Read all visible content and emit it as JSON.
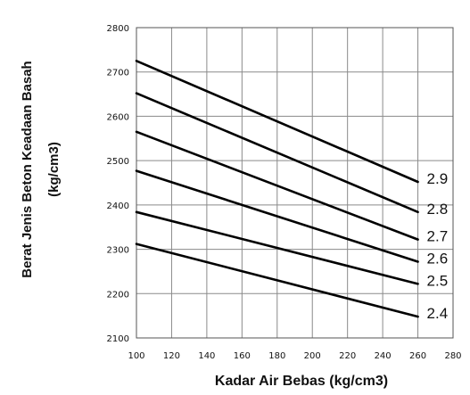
{
  "chart_data": {
    "type": "line",
    "xlabel": "Kadar Air Bebas (kg/cm3)",
    "ylabel_line1": "Berat Jenis Beton Keadaan Basah",
    "ylabel_line2": "(kg/cm3)",
    "xlim": [
      100,
      280
    ],
    "ylim": [
      2100,
      2800
    ],
    "x_ticks": [
      100,
      120,
      140,
      160,
      180,
      200,
      220,
      240,
      260,
      280
    ],
    "y_ticks": [
      2100,
      2200,
      2300,
      2400,
      2500,
      2600,
      2700,
      2800
    ],
    "grid": true,
    "series": [
      {
        "name": "2.9",
        "x": [
          100,
          260
        ],
        "y": [
          2725,
          2452
        ]
      },
      {
        "name": "2.8",
        "x": [
          100,
          260
        ],
        "y": [
          2652,
          2384
        ]
      },
      {
        "name": "2.7",
        "x": [
          100,
          260
        ],
        "y": [
          2565,
          2322
        ]
      },
      {
        "name": "2.6",
        "x": [
          100,
          260
        ],
        "y": [
          2477,
          2272
        ]
      },
      {
        "name": "2.5",
        "x": [
          100,
          260
        ],
        "y": [
          2384,
          2222
        ]
      },
      {
        "name": "2.4",
        "x": [
          100,
          260
        ],
        "y": [
          2312,
          2148
        ]
      }
    ]
  }
}
